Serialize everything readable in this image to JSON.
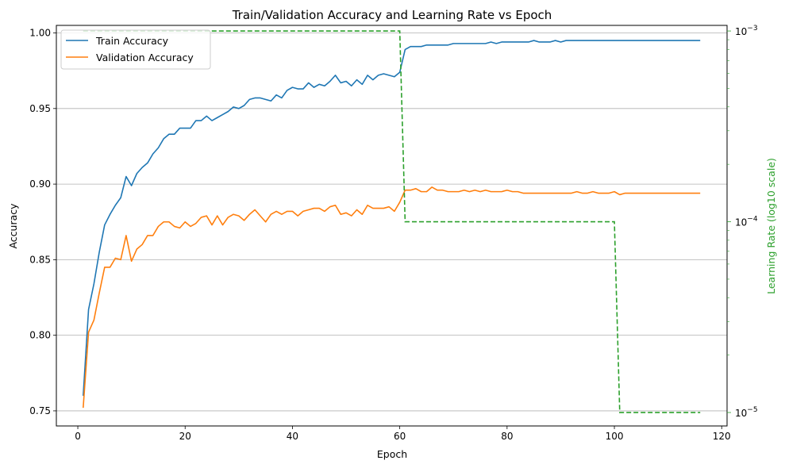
{
  "chart_data": {
    "type": "line",
    "title": "Train/Validation Accuracy and Learning Rate vs Epoch",
    "xlabel": "Epoch",
    "ylabel": "Accuracy",
    "y2label": "Learning Rate (log10 scale)",
    "xlim": [
      -4,
      121
    ],
    "ylim": [
      0.74,
      1.005
    ],
    "y2lim": [
      8.5e-06,
      0.00107
    ],
    "y2scale": "log",
    "xticks": [
      0,
      20,
      40,
      60,
      80,
      100,
      120
    ],
    "yticks": [
      0.75,
      0.8,
      0.85,
      0.9,
      0.95,
      1.0
    ],
    "ytick_labels": [
      "0.75",
      "0.80",
      "0.85",
      "0.90",
      "0.95",
      "1.00"
    ],
    "y2ticks": [
      1e-05,
      0.0001,
      0.001
    ],
    "y2tick_labels": [
      {
        "base": "10",
        "exp": "−5"
      },
      {
        "base": "10",
        "exp": "−4"
      },
      {
        "base": "10",
        "exp": "−3"
      }
    ],
    "grid": "y-major",
    "legend_position": "upper-left",
    "colors": {
      "train": "#1f77b4",
      "validation": "#ff7f0e",
      "lr": "#2ca02c"
    },
    "series": [
      {
        "name": "Train Accuracy",
        "axis": "left",
        "values": [
          0.76,
          0.817,
          0.834,
          0.855,
          0.873,
          0.88,
          0.886,
          0.891,
          0.905,
          0.899,
          0.907,
          0.911,
          0.914,
          0.92,
          0.924,
          0.93,
          0.933,
          0.933,
          0.937,
          0.937,
          0.937,
          0.942,
          0.942,
          0.945,
          0.942,
          0.944,
          0.946,
          0.948,
          0.951,
          0.95,
          0.952,
          0.956,
          0.957,
          0.957,
          0.956,
          0.955,
          0.959,
          0.957,
          0.962,
          0.964,
          0.963,
          0.963,
          0.967,
          0.964,
          0.966,
          0.965,
          0.968,
          0.972,
          0.967,
          0.968,
          0.965,
          0.969,
          0.966,
          0.972,
          0.969,
          0.972,
          0.973,
          0.972,
          0.971,
          0.974,
          0.989,
          0.991,
          0.991,
          0.991,
          0.992,
          0.992,
          0.992,
          0.992,
          0.992,
          0.993,
          0.993,
          0.993,
          0.993,
          0.993,
          0.993,
          0.993,
          0.994,
          0.993,
          0.994,
          0.994,
          0.994,
          0.994,
          0.994,
          0.994,
          0.995,
          0.994,
          0.994,
          0.994,
          0.995,
          0.994,
          0.995,
          0.995,
          0.995,
          0.995,
          0.995,
          0.995,
          0.995,
          0.995,
          0.995,
          0.995,
          0.995,
          0.995,
          0.995,
          0.995,
          0.995,
          0.995,
          0.995,
          0.995,
          0.995,
          0.995,
          0.995,
          0.995,
          0.995,
          0.995,
          0.995,
          0.995
        ]
      },
      {
        "name": "Validation Accuracy",
        "axis": "left",
        "values": [
          0.752,
          0.802,
          0.81,
          0.828,
          0.845,
          0.845,
          0.851,
          0.85,
          0.866,
          0.849,
          0.857,
          0.86,
          0.866,
          0.866,
          0.872,
          0.875,
          0.875,
          0.872,
          0.871,
          0.875,
          0.872,
          0.874,
          0.878,
          0.879,
          0.873,
          0.879,
          0.873,
          0.878,
          0.88,
          0.879,
          0.876,
          0.88,
          0.883,
          0.879,
          0.875,
          0.88,
          0.882,
          0.88,
          0.882,
          0.882,
          0.879,
          0.882,
          0.883,
          0.884,
          0.884,
          0.882,
          0.885,
          0.886,
          0.88,
          0.881,
          0.879,
          0.883,
          0.88,
          0.886,
          0.884,
          0.884,
          0.884,
          0.885,
          0.882,
          0.888,
          0.896,
          0.896,
          0.897,
          0.895,
          0.895,
          0.898,
          0.896,
          0.896,
          0.895,
          0.895,
          0.895,
          0.896,
          0.895,
          0.896,
          0.895,
          0.896,
          0.895,
          0.895,
          0.895,
          0.896,
          0.895,
          0.895,
          0.894,
          0.894,
          0.894,
          0.894,
          0.894,
          0.894,
          0.894,
          0.894,
          0.894,
          0.894,
          0.895,
          0.894,
          0.894,
          0.895,
          0.894,
          0.894,
          0.894,
          0.895,
          0.893,
          0.894,
          0.894,
          0.894,
          0.894,
          0.894,
          0.894,
          0.894,
          0.894,
          0.894,
          0.894,
          0.894,
          0.894,
          0.894,
          0.894,
          0.894
        ]
      },
      {
        "axis": "right",
        "style": "dashed",
        "steps": [
          {
            "x_from": 1,
            "x_to": 60,
            "value": 0.001
          },
          {
            "x_from": 61,
            "x_to": 100,
            "value": 0.0001
          },
          {
            "x_from": 101,
            "x_to": 116,
            "value": 1e-05
          }
        ]
      }
    ]
  }
}
